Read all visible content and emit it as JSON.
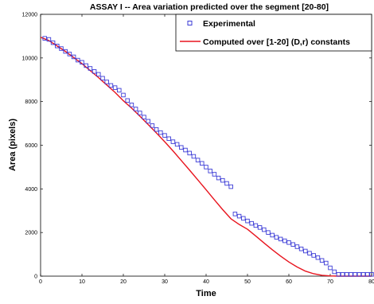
{
  "chart_data": {
    "type": "line",
    "title": "ASSAY I -- Area variation predicted over the segment [20-80]",
    "xlabel": "Time",
    "ylabel": "Area (pixels)",
    "xlim": [
      0,
      80
    ],
    "ylim": [
      0,
      12000
    ],
    "xticks": [
      "0",
      "10",
      "20",
      "30",
      "40",
      "50",
      "60",
      "70",
      "80"
    ],
    "yticks": [
      "0",
      "2000",
      "4000",
      "6000",
      "8000",
      "10000",
      "12000"
    ],
    "grid": false,
    "legend_position": "top-right",
    "colors": {
      "experimental": "#3b3bd6",
      "computed": "#e8141e"
    },
    "series": [
      {
        "name": "Experimental",
        "style": "square-markers",
        "x": [
          1,
          2,
          3,
          4,
          5,
          6,
          7,
          8,
          9,
          10,
          11,
          12,
          13,
          14,
          15,
          16,
          17,
          18,
          19,
          20,
          21,
          22,
          23,
          24,
          25,
          26,
          27,
          28,
          29,
          30,
          31,
          32,
          33,
          34,
          35,
          36,
          37,
          38,
          39,
          40,
          41,
          42,
          43,
          44,
          45,
          46,
          47,
          48,
          49,
          50,
          51,
          52,
          53,
          54,
          55,
          56,
          57,
          58,
          59,
          60,
          61,
          62,
          63,
          64,
          65,
          66,
          67,
          68,
          69,
          70,
          71,
          72,
          73,
          74,
          75,
          76,
          77,
          78,
          79,
          80
        ],
        "y": [
          10900,
          10850,
          10700,
          10550,
          10430,
          10300,
          10180,
          10050,
          9900,
          9800,
          9650,
          9520,
          9380,
          9250,
          9070,
          8900,
          8740,
          8640,
          8520,
          8300,
          8050,
          7850,
          7660,
          7480,
          7290,
          7100,
          6900,
          6720,
          6580,
          6450,
          6300,
          6160,
          6040,
          5900,
          5780,
          5640,
          5490,
          5320,
          5170,
          5000,
          4820,
          4670,
          4500,
          4390,
          4250,
          4100,
          2850,
          2750,
          2650,
          2530,
          2420,
          2320,
          2230,
          2130,
          2000,
          1880,
          1780,
          1700,
          1620,
          1540,
          1450,
          1350,
          1250,
          1150,
          1050,
          950,
          850,
          720,
          600,
          380,
          200,
          80,
          80,
          80,
          80,
          80,
          80,
          80,
          80,
          80
        ]
      },
      {
        "name": "Computed over [1-20] (D,r) constants",
        "style": "solid-line",
        "x": [
          0,
          2,
          4,
          6,
          8,
          10,
          12,
          14,
          16,
          18,
          20,
          22,
          24,
          26,
          28,
          30,
          32,
          34,
          36,
          38,
          40,
          42,
          44,
          46,
          48,
          50,
          52,
          54,
          56,
          58,
          60,
          62,
          64,
          66,
          68,
          70,
          72,
          74,
          76,
          78,
          80
        ],
        "y": [
          10950,
          10800,
          10550,
          10300,
          10020,
          9740,
          9420,
          9100,
          8760,
          8420,
          8040,
          7700,
          7330,
          6950,
          6560,
          6160,
          5740,
          5300,
          4860,
          4410,
          3960,
          3500,
          3050,
          2630,
          2370,
          2150,
          1840,
          1520,
          1210,
          920,
          650,
          420,
          230,
          110,
          40,
          10,
          0,
          0,
          0,
          0,
          0
        ]
      }
    ]
  }
}
